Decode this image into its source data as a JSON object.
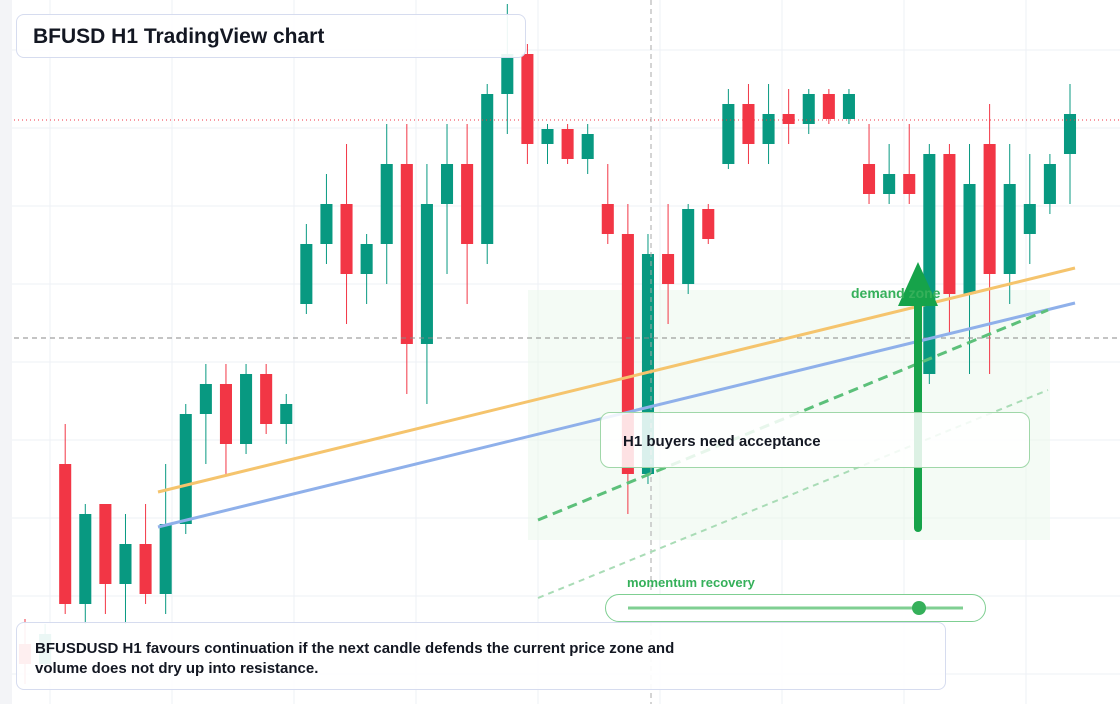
{
  "chart_data": {
    "type": "candlestick",
    "title": "BFUSD H1 TradingView chart",
    "annotations": {
      "callout": "H1 buyers need acceptance",
      "zone": "demand zone",
      "momentum": "momentum recovery",
      "note": "BFUSDUSD H1 favours continuation if the next candle defends the current price zone and volume does not dry up into resistance."
    },
    "up_color": "#089981",
    "down_color": "#f23645",
    "ylim": [
      0,
      700
    ],
    "candles": [
      [
        60,
        85,
        20,
        40
      ],
      [
        40,
        80,
        30,
        70
      ],
      [
        240,
        280,
        90,
        100
      ],
      [
        100,
        200,
        80,
        190
      ],
      [
        200,
        200,
        90,
        120
      ],
      [
        120,
        190,
        80,
        160
      ],
      [
        160,
        200,
        100,
        110
      ],
      [
        110,
        240,
        90,
        180
      ],
      [
        180,
        300,
        170,
        290
      ],
      [
        290,
        340,
        240,
        320
      ],
      [
        320,
        340,
        230,
        260
      ],
      [
        260,
        340,
        250,
        330
      ],
      [
        330,
        340,
        270,
        280
      ],
      [
        280,
        310,
        260,
        300
      ],
      [
        400,
        480,
        390,
        460
      ],
      [
        460,
        530,
        440,
        500
      ],
      [
        500,
        560,
        380,
        430
      ],
      [
        430,
        470,
        400,
        460
      ],
      [
        460,
        580,
        420,
        540
      ],
      [
        540,
        580,
        310,
        360
      ],
      [
        360,
        540,
        300,
        500
      ],
      [
        500,
        580,
        430,
        540
      ],
      [
        540,
        580,
        400,
        460
      ],
      [
        460,
        620,
        440,
        610
      ],
      [
        610,
        700,
        570,
        650
      ],
      [
        650,
        660,
        540,
        560
      ],
      [
        560,
        580,
        540,
        575
      ],
      [
        575,
        580,
        540,
        545
      ],
      [
        545,
        580,
        530,
        570
      ],
      [
        500,
        540,
        460,
        470
      ],
      [
        470,
        500,
        190,
        230
      ],
      [
        230,
        470,
        220,
        450
      ],
      [
        450,
        500,
        380,
        420
      ],
      [
        420,
        500,
        410,
        495
      ],
      [
        495,
        500,
        460,
        465
      ],
      [
        540,
        615,
        535,
        600
      ],
      [
        600,
        620,
        540,
        560
      ],
      [
        560,
        620,
        540,
        590
      ],
      [
        590,
        615,
        560,
        580
      ],
      [
        580,
        615,
        570,
        610
      ],
      [
        610,
        615,
        580,
        585
      ],
      [
        585,
        615,
        580,
        610
      ],
      [
        540,
        580,
        500,
        510
      ],
      [
        510,
        560,
        500,
        530
      ],
      [
        530,
        580,
        500,
        510
      ],
      [
        330,
        560,
        320,
        550
      ],
      [
        550,
        560,
        370,
        410
      ],
      [
        410,
        560,
        330,
        520
      ],
      [
        560,
        600,
        330,
        430
      ],
      [
        430,
        560,
        400,
        520
      ],
      [
        470,
        550,
        440,
        500
      ],
      [
        500,
        550,
        490,
        540
      ],
      [
        550,
        620,
        500,
        590
      ]
    ]
  }
}
